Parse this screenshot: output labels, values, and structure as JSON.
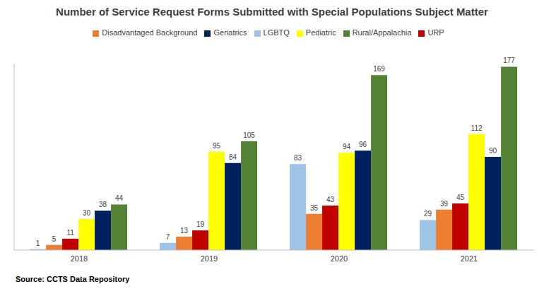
{
  "chart_data": {
    "type": "bar",
    "title": "Number of Service Request Forms Submitted with Special Populations Subject Matter",
    "source": "Source: CCTS Data Repository",
    "categories": [
      "2018",
      "2019",
      "2020",
      "2021"
    ],
    "series": [
      {
        "name": "LGBTQ",
        "color": "#9dc3e6",
        "values": [
          1,
          7,
          83,
          29
        ]
      },
      {
        "name": "Disadvantaged Background",
        "color": "#ed7d31",
        "values": [
          5,
          13,
          35,
          39
        ]
      },
      {
        "name": "URP",
        "color": "#c00000",
        "values": [
          11,
          19,
          43,
          45
        ]
      },
      {
        "name": "Pediatric",
        "color": "#ffff00",
        "values": [
          30,
          95,
          94,
          112
        ]
      },
      {
        "name": "Geriatrics",
        "color": "#002060",
        "values": [
          38,
          84,
          96,
          90
        ]
      },
      {
        "name": "Rural/Appalachia",
        "color": "#548235",
        "values": [
          44,
          105,
          169,
          177
        ]
      }
    ],
    "ylim": [
      0,
      180
    ],
    "grid": false,
    "legend": "top",
    "data_labels": true,
    "tick_labels": "x"
  }
}
